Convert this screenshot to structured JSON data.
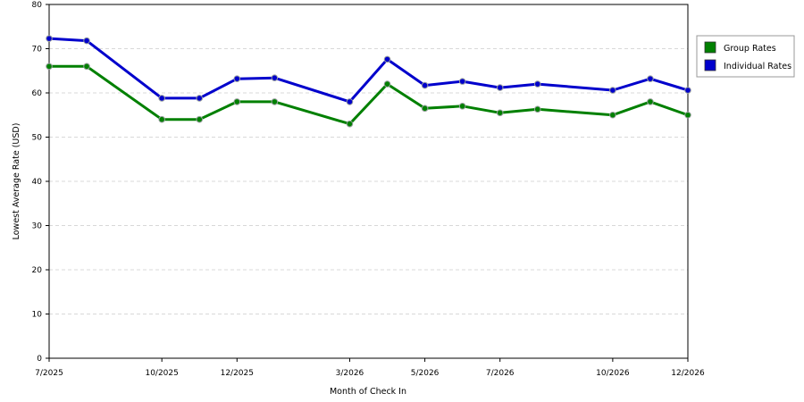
{
  "chart_data": {
    "type": "line",
    "x": [
      "7/2025",
      "8/2025",
      "9/2025",
      "10/2025",
      "11/2025",
      "12/2025",
      "1/2026",
      "2/2026",
      "3/2026",
      "4/2026",
      "5/2026",
      "6/2026",
      "7/2026",
      "8/2026",
      "9/2026",
      "10/2026",
      "11/2026",
      "12/2026"
    ],
    "x_tick_labels": [
      "7/2025",
      "10/2025",
      "12/2025",
      "3/2026",
      "5/2026",
      "7/2026",
      "10/2026",
      "12/2026"
    ],
    "xlabel": "Month of Check In",
    "ylabel": "Lowest Average Rate (USD)",
    "ylim": [
      0,
      80
    ],
    "yticks": [
      0,
      10,
      20,
      30,
      40,
      50,
      60,
      70,
      80
    ],
    "grid": true,
    "legend_position": "right",
    "series": [
      {
        "name": "Group Rates",
        "color": "#008000",
        "points": [
          {
            "x": "7/2025",
            "y": 66
          },
          {
            "x": "8/2025",
            "y": 66
          },
          {
            "x": "10/2025",
            "y": 54
          },
          {
            "x": "11/2025",
            "y": 54
          },
          {
            "x": "12/2025",
            "y": 58
          },
          {
            "x": "1/2026",
            "y": 58
          },
          {
            "x": "3/2026",
            "y": 53
          },
          {
            "x": "4/2026",
            "y": 62
          },
          {
            "x": "5/2026",
            "y": 56.5
          },
          {
            "x": "6/2026",
            "y": 57
          },
          {
            "x": "7/2026",
            "y": 55.5
          },
          {
            "x": "8/2026",
            "y": 56.3
          },
          {
            "x": "10/2026",
            "y": 55
          },
          {
            "x": "11/2026",
            "y": 58
          },
          {
            "x": "12/2026",
            "y": 55
          }
        ]
      },
      {
        "name": "Individual Rates",
        "color": "#0000cc",
        "points": [
          {
            "x": "7/2025",
            "y": 72.3
          },
          {
            "x": "8/2025",
            "y": 71.8
          },
          {
            "x": "10/2025",
            "y": 58.8
          },
          {
            "x": "11/2025",
            "y": 58.8
          },
          {
            "x": "12/2025",
            "y": 63.2
          },
          {
            "x": "1/2026",
            "y": 63.4
          },
          {
            "x": "3/2026",
            "y": 58
          },
          {
            "x": "4/2026",
            "y": 67.6
          },
          {
            "x": "5/2026",
            "y": 61.7
          },
          {
            "x": "6/2026",
            "y": 62.6
          },
          {
            "x": "7/2026",
            "y": 61.2
          },
          {
            "x": "8/2026",
            "y": 62
          },
          {
            "x": "10/2026",
            "y": 60.6
          },
          {
            "x": "11/2026",
            "y": 63.2
          },
          {
            "x": "12/2026",
            "y": 60.6
          }
        ]
      }
    ]
  }
}
